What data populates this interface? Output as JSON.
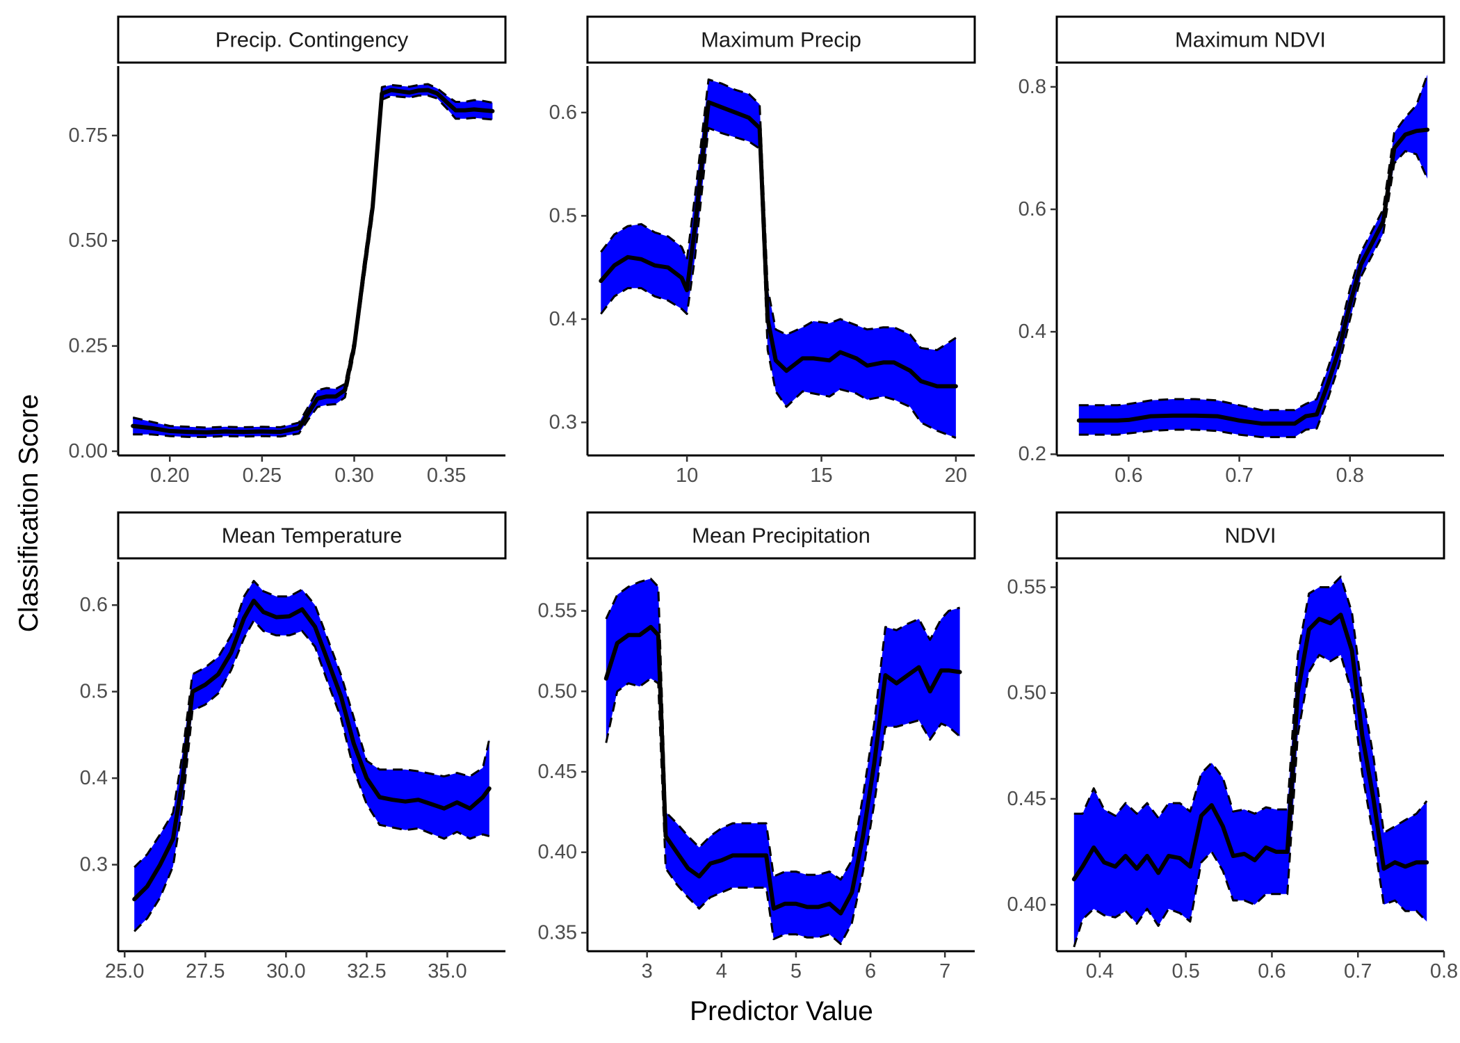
{
  "chart_data": {
    "type": "line",
    "layout": "facet-grid-2x3",
    "xlabel": "Predictor Value",
    "ylabel": "Classification Score",
    "ribbon_color": "#0000FF",
    "line_color": "#000000",
    "grid": false,
    "panels": [
      {
        "title": "Precip. Contingency",
        "xlim": [
          0.172,
          0.382
        ],
        "ylim": [
          -0.01,
          0.915
        ],
        "xticks": [
          0.2,
          0.25,
          0.3,
          0.35
        ],
        "xtick_labels": [
          "0.20",
          "0.25",
          "0.30",
          "0.35"
        ],
        "yticks": [
          0.0,
          0.25,
          0.5,
          0.75
        ],
        "ytick_labels": [
          "0.00",
          "0.25",
          "0.50",
          "0.75"
        ],
        "x": [
          0.18,
          0.19,
          0.2,
          0.21,
          0.22,
          0.23,
          0.24,
          0.25,
          0.26,
          0.27,
          0.275,
          0.28,
          0.285,
          0.29,
          0.295,
          0.3,
          0.305,
          0.31,
          0.315,
          0.32,
          0.325,
          0.33,
          0.335,
          0.34,
          0.345,
          0.35,
          0.355,
          0.36,
          0.365,
          0.37,
          0.375
        ],
        "mean": [
          0.06,
          0.055,
          0.048,
          0.046,
          0.045,
          0.047,
          0.046,
          0.047,
          0.046,
          0.055,
          0.09,
          0.125,
          0.13,
          0.13,
          0.145,
          0.25,
          0.42,
          0.58,
          0.85,
          0.858,
          0.855,
          0.852,
          0.857,
          0.858,
          0.85,
          0.83,
          0.81,
          0.81,
          0.812,
          0.81,
          0.808
        ],
        "upper": [
          0.08,
          0.07,
          0.06,
          0.058,
          0.056,
          0.058,
          0.057,
          0.058,
          0.057,
          0.068,
          0.105,
          0.145,
          0.15,
          0.148,
          0.16,
          0.265,
          0.44,
          0.6,
          0.865,
          0.87,
          0.868,
          0.866,
          0.87,
          0.872,
          0.862,
          0.845,
          0.83,
          0.83,
          0.834,
          0.832,
          0.828
        ],
        "lower": [
          0.04,
          0.04,
          0.036,
          0.034,
          0.034,
          0.036,
          0.035,
          0.036,
          0.035,
          0.042,
          0.075,
          0.105,
          0.11,
          0.112,
          0.128,
          0.235,
          0.4,
          0.56,
          0.835,
          0.844,
          0.842,
          0.84,
          0.845,
          0.845,
          0.838,
          0.815,
          0.79,
          0.79,
          0.792,
          0.79,
          0.788
        ]
      },
      {
        "title": "Maximum Precip",
        "xlim": [
          6.3,
          20.7
        ],
        "ylim": [
          0.268,
          0.645
        ],
        "xticks": [
          10,
          15,
          20
        ],
        "xtick_labels": [
          "10",
          "15",
          "20"
        ],
        "yticks": [
          0.3,
          0.4,
          0.5,
          0.6
        ],
        "ytick_labels": [
          "0.3",
          "0.4",
          "0.5",
          "0.6"
        ],
        "x": [
          6.8,
          7.3,
          7.8,
          8.3,
          8.8,
          9.3,
          9.8,
          10.0,
          10.3,
          10.8,
          11.3,
          11.8,
          12.3,
          12.7,
          13.0,
          13.3,
          13.7,
          14.3,
          14.7,
          15.3,
          15.7,
          16.3,
          16.7,
          17.3,
          17.7,
          18.3,
          18.7,
          19.3,
          20.0
        ],
        "mean": [
          0.437,
          0.452,
          0.46,
          0.458,
          0.452,
          0.45,
          0.44,
          0.428,
          0.49,
          0.61,
          0.605,
          0.6,
          0.595,
          0.585,
          0.4,
          0.36,
          0.35,
          0.362,
          0.362,
          0.36,
          0.368,
          0.362,
          0.355,
          0.358,
          0.358,
          0.35,
          0.34,
          0.335,
          0.335
        ],
        "upper": [
          0.465,
          0.482,
          0.49,
          0.492,
          0.484,
          0.48,
          0.47,
          0.458,
          0.52,
          0.632,
          0.628,
          0.622,
          0.618,
          0.608,
          0.43,
          0.39,
          0.385,
          0.392,
          0.398,
          0.396,
          0.4,
          0.394,
          0.39,
          0.392,
          0.392,
          0.385,
          0.372,
          0.37,
          0.382
        ],
        "lower": [
          0.405,
          0.422,
          0.43,
          0.43,
          0.422,
          0.418,
          0.41,
          0.405,
          0.46,
          0.585,
          0.58,
          0.576,
          0.572,
          0.565,
          0.37,
          0.33,
          0.315,
          0.33,
          0.328,
          0.325,
          0.332,
          0.328,
          0.322,
          0.325,
          0.322,
          0.315,
          0.3,
          0.292,
          0.285
        ]
      },
      {
        "title": "Maximum NDVI",
        "xlim": [
          0.535,
          0.885
        ],
        "ylim": [
          0.198,
          0.834
        ],
        "xticks": [
          0.6,
          0.7,
          0.8
        ],
        "xtick_labels": [
          "0.6",
          "0.7",
          "0.8"
        ],
        "yticks": [
          0.2,
          0.4,
          0.6,
          0.8
        ],
        "ytick_labels": [
          "0.2",
          "0.4",
          "0.6",
          "0.8"
        ],
        "x": [
          0.555,
          0.57,
          0.59,
          0.6,
          0.62,
          0.64,
          0.66,
          0.68,
          0.7,
          0.72,
          0.74,
          0.75,
          0.76,
          0.77,
          0.78,
          0.79,
          0.8,
          0.81,
          0.82,
          0.83,
          0.84,
          0.85,
          0.86,
          0.87
        ],
        "mean": [
          0.255,
          0.255,
          0.255,
          0.256,
          0.262,
          0.263,
          0.263,
          0.262,
          0.255,
          0.25,
          0.25,
          0.25,
          0.262,
          0.265,
          0.315,
          0.37,
          0.445,
          0.51,
          0.545,
          0.58,
          0.7,
          0.722,
          0.728,
          0.73
        ],
        "upper": [
          0.28,
          0.28,
          0.28,
          0.282,
          0.288,
          0.29,
          0.29,
          0.288,
          0.28,
          0.272,
          0.272,
          0.272,
          0.282,
          0.29,
          0.34,
          0.395,
          0.47,
          0.53,
          0.565,
          0.6,
          0.725,
          0.75,
          0.77,
          0.82
        ],
        "lower": [
          0.232,
          0.232,
          0.232,
          0.234,
          0.238,
          0.24,
          0.24,
          0.238,
          0.232,
          0.228,
          0.228,
          0.228,
          0.24,
          0.242,
          0.29,
          0.345,
          0.42,
          0.49,
          0.525,
          0.56,
          0.675,
          0.695,
          0.69,
          0.65
        ]
      },
      {
        "title": "Mean Temperature",
        "xlim": [
          24.8,
          36.8
        ],
        "ylim": [
          0.2,
          0.65
        ],
        "xticks": [
          25.0,
          27.5,
          30.0,
          32.5,
          35.0
        ],
        "xtick_labels": [
          "25.0",
          "27.5",
          "30.0",
          "32.5",
          "35.0"
        ],
        "yticks": [
          0.3,
          0.4,
          0.5,
          0.6
        ],
        "ytick_labels": [
          "0.3",
          "0.4",
          "0.5",
          "0.6"
        ],
        "x": [
          25.3,
          25.7,
          26.1,
          26.5,
          26.8,
          27.1,
          27.5,
          27.9,
          28.3,
          28.7,
          29.0,
          29.3,
          29.7,
          30.1,
          30.5,
          30.9,
          31.3,
          31.7,
          32.1,
          32.5,
          32.9,
          33.3,
          33.7,
          34.1,
          34.5,
          34.9,
          35.3,
          35.7,
          36.1,
          36.3
        ],
        "mean": [
          0.26,
          0.275,
          0.3,
          0.33,
          0.4,
          0.5,
          0.508,
          0.52,
          0.545,
          0.585,
          0.605,
          0.592,
          0.586,
          0.587,
          0.595,
          0.575,
          0.535,
          0.495,
          0.44,
          0.4,
          0.378,
          0.375,
          0.373,
          0.375,
          0.37,
          0.365,
          0.372,
          0.365,
          0.378,
          0.388
        ],
        "upper": [
          0.297,
          0.312,
          0.335,
          0.36,
          0.43,
          0.52,
          0.528,
          0.54,
          0.565,
          0.61,
          0.628,
          0.616,
          0.61,
          0.61,
          0.618,
          0.6,
          0.56,
          0.52,
          0.47,
          0.42,
          0.41,
          0.41,
          0.41,
          0.408,
          0.405,
          0.402,
          0.406,
          0.402,
          0.412,
          0.445
        ],
        "lower": [
          0.223,
          0.238,
          0.262,
          0.298,
          0.37,
          0.478,
          0.485,
          0.498,
          0.525,
          0.562,
          0.582,
          0.57,
          0.565,
          0.565,
          0.57,
          0.552,
          0.51,
          0.47,
          0.41,
          0.37,
          0.346,
          0.343,
          0.34,
          0.342,
          0.336,
          0.33,
          0.338,
          0.33,
          0.335,
          0.333
        ]
      },
      {
        "title": "Mean Precipitation",
        "xlim": [
          2.2,
          7.4
        ],
        "ylim": [
          0.3385,
          0.5805
        ],
        "xticks": [
          3,
          4,
          5,
          6,
          7
        ],
        "xtick_labels": [
          "3",
          "4",
          "5",
          "6",
          "7"
        ],
        "yticks": [
          0.35,
          0.4,
          0.45,
          0.5,
          0.55
        ],
        "ytick_labels": [
          "0.35",
          "0.40",
          "0.45",
          "0.50",
          "0.55"
        ],
        "x": [
          2.45,
          2.6,
          2.75,
          2.9,
          3.05,
          3.15,
          3.25,
          3.4,
          3.55,
          3.7,
          3.85,
          4.0,
          4.15,
          4.3,
          4.45,
          4.6,
          4.7,
          4.85,
          5.0,
          5.15,
          5.3,
          5.45,
          5.6,
          5.75,
          5.9,
          6.05,
          6.2,
          6.35,
          6.5,
          6.65,
          6.8,
          6.95,
          7.05,
          7.2
        ],
        "mean": [
          0.508,
          0.53,
          0.535,
          0.535,
          0.54,
          0.535,
          0.41,
          0.4,
          0.39,
          0.385,
          0.393,
          0.395,
          0.398,
          0.398,
          0.398,
          0.398,
          0.365,
          0.368,
          0.368,
          0.366,
          0.366,
          0.368,
          0.362,
          0.375,
          0.41,
          0.455,
          0.51,
          0.505,
          0.51,
          0.515,
          0.5,
          0.513,
          0.513,
          0.512
        ],
        "upper": [
          0.545,
          0.56,
          0.565,
          0.568,
          0.57,
          0.565,
          0.425,
          0.418,
          0.41,
          0.403,
          0.41,
          0.415,
          0.418,
          0.418,
          0.418,
          0.418,
          0.385,
          0.388,
          0.388,
          0.386,
          0.386,
          0.388,
          0.383,
          0.395,
          0.435,
          0.48,
          0.54,
          0.538,
          0.542,
          0.545,
          0.532,
          0.545,
          0.55,
          0.552
        ],
        "lower": [
          0.468,
          0.5,
          0.505,
          0.503,
          0.508,
          0.505,
          0.39,
          0.38,
          0.372,
          0.365,
          0.372,
          0.375,
          0.378,
          0.378,
          0.378,
          0.378,
          0.346,
          0.349,
          0.349,
          0.347,
          0.347,
          0.349,
          0.343,
          0.356,
          0.388,
          0.43,
          0.478,
          0.478,
          0.48,
          0.482,
          0.47,
          0.48,
          0.478,
          0.472
        ]
      },
      {
        "title": "NDVI",
        "xlim": [
          0.35,
          0.8
        ],
        "ylim": [
          0.378,
          0.562
        ],
        "xticks": [
          0.4,
          0.5,
          0.6,
          0.7,
          0.8
        ],
        "xtick_labels": [
          "0.4",
          "0.5",
          "0.6",
          "0.7",
          "0.8"
        ],
        "yticks": [
          0.4,
          0.45,
          0.5,
          0.55
        ],
        "ytick_labels": [
          "0.40",
          "0.45",
          "0.50",
          "0.55"
        ],
        "x": [
          0.37,
          0.38,
          0.393,
          0.405,
          0.418,
          0.43,
          0.443,
          0.455,
          0.468,
          0.48,
          0.493,
          0.505,
          0.518,
          0.53,
          0.543,
          0.555,
          0.568,
          0.58,
          0.593,
          0.605,
          0.618,
          0.63,
          0.643,
          0.655,
          0.668,
          0.68,
          0.693,
          0.705,
          0.718,
          0.73,
          0.743,
          0.755,
          0.768,
          0.78
        ],
        "mean": [
          0.412,
          0.418,
          0.427,
          0.42,
          0.418,
          0.423,
          0.417,
          0.423,
          0.415,
          0.423,
          0.422,
          0.418,
          0.442,
          0.447,
          0.437,
          0.423,
          0.424,
          0.421,
          0.427,
          0.425,
          0.425,
          0.5,
          0.53,
          0.535,
          0.533,
          0.537,
          0.52,
          0.48,
          0.45,
          0.417,
          0.42,
          0.418,
          0.42,
          0.42
        ],
        "upper": [
          0.443,
          0.443,
          0.455,
          0.445,
          0.442,
          0.448,
          0.443,
          0.448,
          0.441,
          0.448,
          0.448,
          0.444,
          0.462,
          0.467,
          0.46,
          0.444,
          0.445,
          0.443,
          0.446,
          0.445,
          0.445,
          0.518,
          0.547,
          0.55,
          0.55,
          0.555,
          0.538,
          0.5,
          0.47,
          0.434,
          0.437,
          0.44,
          0.443,
          0.449
        ],
        "lower": [
          0.38,
          0.393,
          0.398,
          0.395,
          0.394,
          0.397,
          0.391,
          0.398,
          0.39,
          0.398,
          0.396,
          0.392,
          0.42,
          0.425,
          0.416,
          0.402,
          0.402,
          0.4,
          0.405,
          0.405,
          0.405,
          0.48,
          0.51,
          0.518,
          0.515,
          0.518,
          0.5,
          0.462,
          0.432,
          0.4,
          0.402,
          0.397,
          0.397,
          0.392
        ]
      }
    ]
  }
}
